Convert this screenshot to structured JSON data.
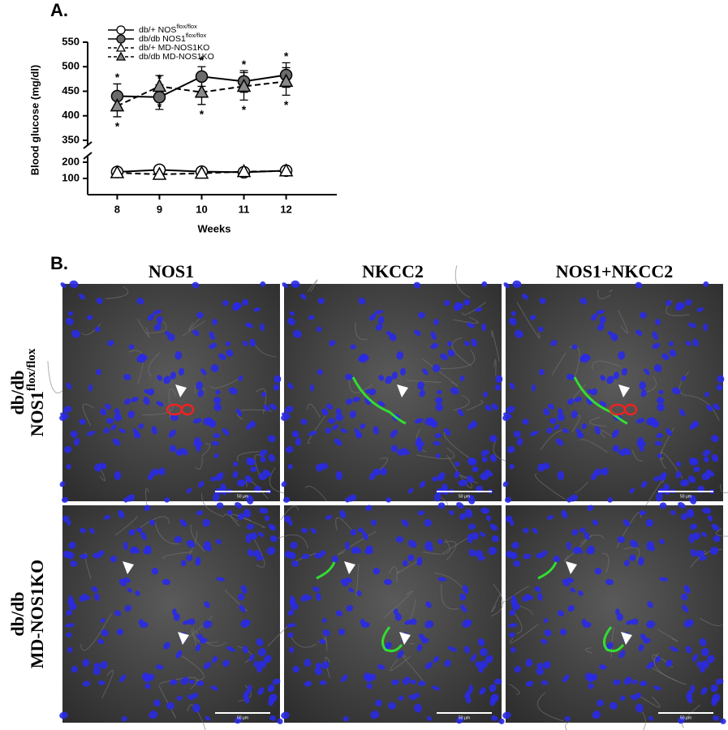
{
  "chart_data": {
    "type": "line",
    "x_label": "Weeks",
    "y_label": "Blood glucose (mg/dl)",
    "x": [
      8,
      9,
      10,
      11,
      12
    ],
    "xlim": [
      7.3,
      13.2
    ],
    "xticks": [
      8,
      9,
      10,
      11,
      12
    ],
    "ylim": [
      0,
      550
    ],
    "ybreak": [
      200,
      350
    ],
    "yticks": [
      100,
      200,
      350,
      400,
      450,
      500,
      550
    ],
    "significance_marker": "*",
    "series": [
      {
        "name": "db/+ NOS",
        "name_sup": "flox/flox",
        "color": "#000000",
        "fill": "#ffffff",
        "marker": "circle",
        "dash": false,
        "values": [
          140,
          153,
          142,
          138,
          148
        ],
        "errors": [
          10,
          8,
          12,
          18,
          10
        ]
      },
      {
        "name": "db/db NOS1",
        "name_sup": "flox/flox",
        "color": "#000000",
        "fill": "#6b6b6b",
        "marker": "circle",
        "dash": false,
        "values": [
          440,
          438,
          480,
          470,
          483
        ],
        "errors": [
          25,
          25,
          20,
          22,
          25
        ]
      },
      {
        "name": "db/+ MD-NOS1KO",
        "color": "#000000",
        "fill": "#ffffff",
        "marker": "triangle",
        "dash": true,
        "values": [
          135,
          125,
          132,
          142,
          146
        ],
        "errors": [
          8,
          6,
          10,
          12,
          8
        ]
      },
      {
        "name": "db/db MD-NOS1KO",
        "color": "#000000",
        "fill": "#8a8a8a",
        "marker": "triangle",
        "dash": true,
        "values": [
          420,
          460,
          448,
          460,
          470
        ],
        "errors": [
          22,
          22,
          25,
          28,
          28
        ]
      }
    ]
  },
  "panel_a_label": "A.",
  "panel_b": {
    "label": "B.",
    "columns": [
      "NOS1",
      "NKCC2",
      "NOS1+NKCC2"
    ],
    "rows": [
      {
        "line1": "db/db",
        "line2": "NOS1",
        "line2_sup": "flox/flox"
      },
      {
        "line1": "db/db",
        "line2": "MD-NOS1KO"
      }
    ],
    "scale_bar": "50 μm"
  }
}
